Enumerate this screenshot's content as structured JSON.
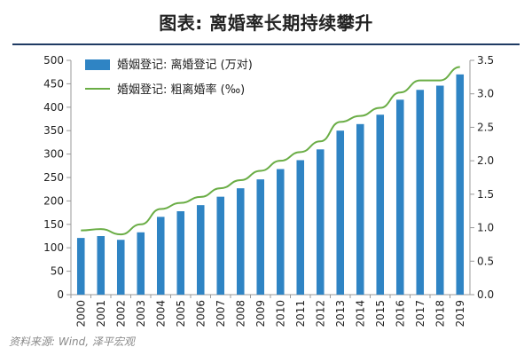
{
  "page": {
    "title": "图表: 离婚率长期持续攀升",
    "source": "资料来源: Wind, 泽平宏观"
  },
  "colors": {
    "bar": "#2f84c4",
    "line": "#6aad45",
    "title_rule": "#1f3b63",
    "axis": "#999999",
    "text": "#222222"
  },
  "chart_data": {
    "type": "bar",
    "categories": [
      "2000",
      "2001",
      "2002",
      "2003",
      "2004",
      "2005",
      "2006",
      "2007",
      "2008",
      "2009",
      "2010",
      "2011",
      "2012",
      "2013",
      "2014",
      "2015",
      "2016",
      "2017",
      "2018",
      "2019"
    ],
    "series": [
      {
        "name": "婚姻登记: 离婚登记 (万对)",
        "type": "bar",
        "axis": "left",
        "values": [
          121,
          125,
          117,
          133,
          166,
          178,
          191,
          209,
          227,
          246,
          268,
          287,
          310,
          350,
          364,
          384,
          416,
          437,
          446,
          470
        ]
      },
      {
        "name": "婚姻登记: 粗离婚率 (‰)",
        "type": "line",
        "axis": "right",
        "values": [
          0.96,
          0.98,
          0.9,
          1.05,
          1.28,
          1.37,
          1.46,
          1.59,
          1.71,
          1.85,
          2.0,
          2.13,
          2.29,
          2.58,
          2.67,
          2.79,
          3.02,
          3.2,
          3.2,
          3.4
        ]
      }
    ],
    "y_left": {
      "min": 0,
      "max": 500,
      "ticks": [
        0,
        50,
        100,
        150,
        200,
        250,
        300,
        350,
        400,
        450,
        500
      ]
    },
    "y_right": {
      "min": 0,
      "max": 3.5,
      "ticks": [
        "0.0",
        "0.5",
        "1.0",
        "1.5",
        "2.0",
        "2.5",
        "3.0",
        "3.5"
      ]
    },
    "legend_position": "top-left",
    "grid": false
  }
}
